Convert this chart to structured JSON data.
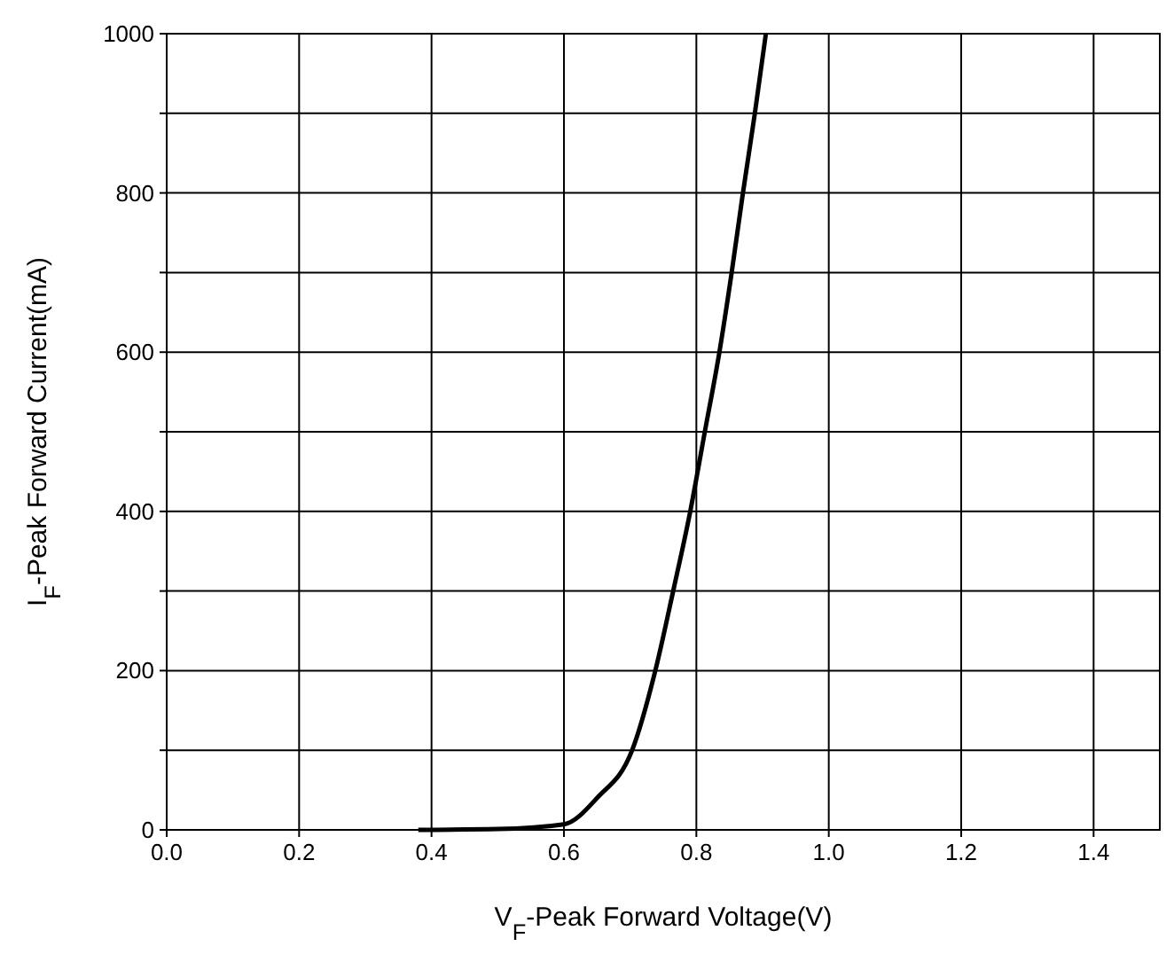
{
  "chart_data": {
    "type": "line",
    "xlabel": "V$_{F}$-Peak Forward Voltage(V)",
    "ylabel": "I$_{F}$-Peak Forward Current(mA)",
    "x": [
      0.38,
      0.5,
      0.6,
      0.651,
      0.703,
      0.738,
      0.765,
      0.791,
      0.813,
      0.835,
      0.853,
      0.87,
      0.888,
      0.905
    ],
    "series": [
      {
        "color": "#000000",
        "values": [
          0,
          1,
          7,
          41,
          100,
          200,
          300,
          401,
          501,
          601,
          698,
          798,
          898,
          1000
        ]
      }
    ],
    "xlim": [
      0,
      1.5
    ],
    "ylim": [
      0,
      1000
    ],
    "xticks": [
      {
        "value": 0,
        "label": "0.0"
      },
      0.2,
      0.4,
      0.6,
      0.8,
      {
        "value": 1,
        "label": "1.0"
      },
      1.2,
      1.4
    ],
    "yticks": [
      0,
      {
        "value": 100,
        "label": null
      },
      200,
      {
        "value": 300,
        "label": null
      },
      400,
      {
        "value": 500,
        "label": null
      },
      600,
      {
        "value": 700,
        "label": null
      },
      800,
      {
        "value": 900,
        "label": null
      },
      1000
    ],
    "grid": true,
    "marker": "none",
    "line_style": "solid"
  }
}
